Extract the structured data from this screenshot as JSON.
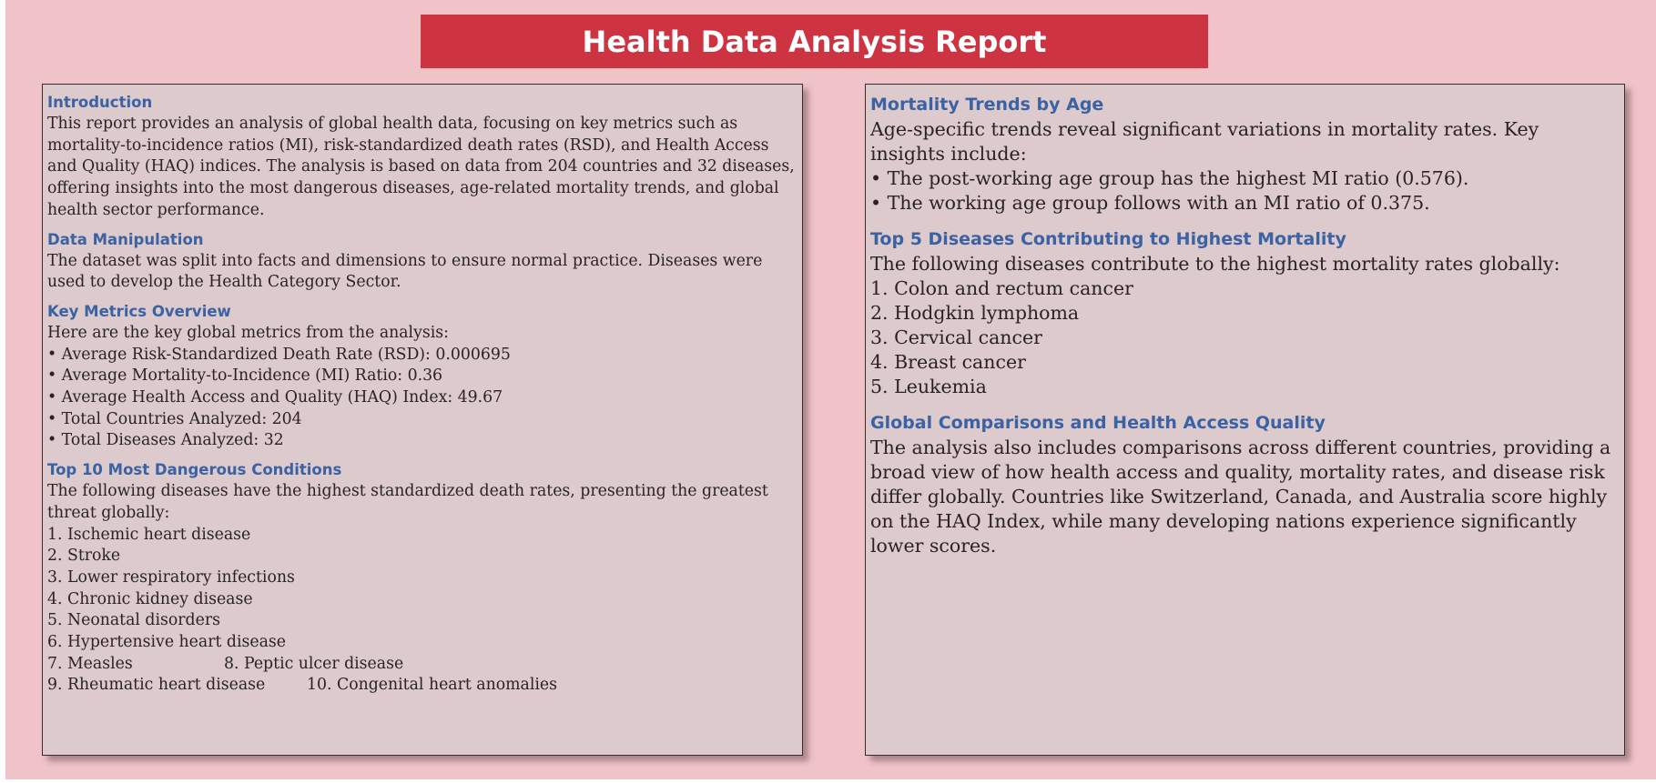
{
  "title": "Health Data Analysis Report",
  "left": {
    "introduction": {
      "heading": "Introduction",
      "text": "This report provides an analysis of global health data, focusing on key metrics such as mortality-to-incidence ratios (MI), risk-standardized death rates (RSD), and Health Access and Quality (HAQ) indices. The analysis is based on data from 204 countries and 32 diseases, offering insights into the most dangerous diseases, age-related mortality trends, and global health sector performance."
    },
    "data_manipulation": {
      "heading": "Data Manipulation",
      "text": "The dataset was split into facts and dimensions to ensure normal practice. Diseases were used to develop the Health Category Sector."
    },
    "key_metrics": {
      "heading": "Key Metrics Overview",
      "intro": "Here are the key global metrics from the analysis:",
      "items": [
        "• Average Risk-Standardized Death Rate (RSD): 0.000695",
        "• Average Mortality-to-Incidence (MI) Ratio: 0.36",
        "• Average Health Access and Quality (HAQ) Index: 49.67",
        "• Total Countries Analyzed: 204",
        "• Total Diseases Analyzed: 32"
      ]
    },
    "top10": {
      "heading": "Top 10 Most Dangerous Conditions",
      "intro": "The following diseases have the highest standardized death rates, presenting the greatest threat globally:",
      "items": [
        "1. Ischemic heart disease",
        "2. Stroke",
        "3. Lower respiratory infections",
        "4. Chronic kidney disease",
        "5. Neonatal disorders",
        "6. Hypertensive heart disease",
        "7. Measles",
        "8. Peptic ulcer disease",
        "9. Rheumatic heart disease",
        "10. Congenital heart anomalies"
      ]
    }
  },
  "right": {
    "mortality_trends": {
      "heading": "Mortality Trends by Age",
      "intro": "Age-specific trends reveal significant variations in mortality rates. Key insights include:",
      "items": [
        "• The post-working age group has the highest MI ratio (0.576).",
        "• The working age group follows with an MI ratio of 0.375."
      ]
    },
    "top5": {
      "heading": "Top 5 Diseases Contributing to Highest Mortality",
      "intro": "The following diseases contribute to the highest mortality rates globally:",
      "items": [
        "1. Colon and rectum cancer",
        "2. Hodgkin lymphoma",
        "3. Cervical cancer",
        "4. Breast cancer",
        "5. Leukemia"
      ]
    },
    "global_comparisons": {
      "heading": "Global Comparisons and Health Access Quality",
      "text": "The analysis also includes comparisons across different countries, providing a broad view of how health access and quality, mortality rates, and disease risk differ globally. Countries like Switzerland, Canada, and Australia score highly on the HAQ Index, while many developing nations experience significantly lower scores."
    }
  }
}
